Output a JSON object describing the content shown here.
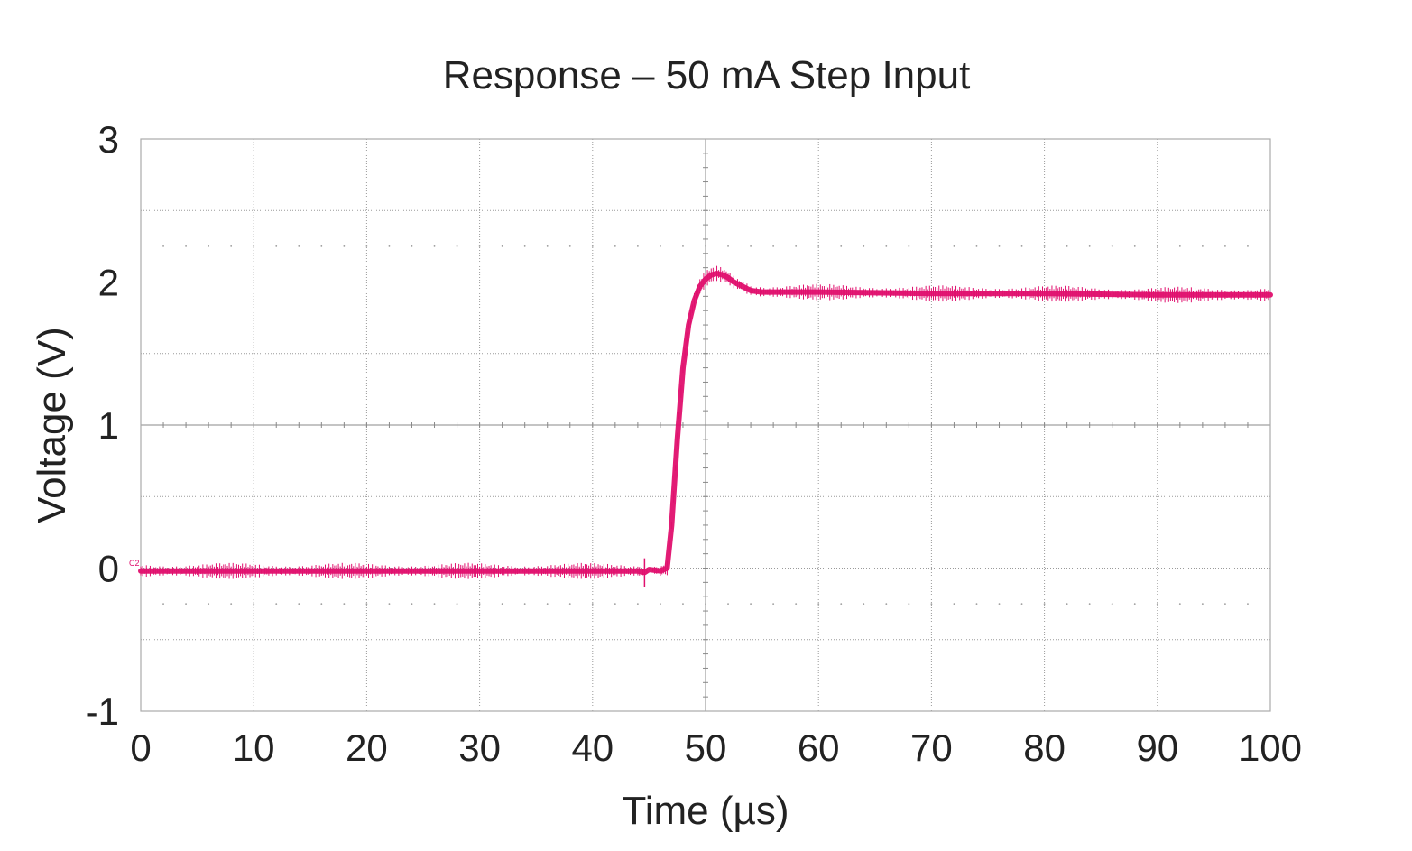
{
  "chart_data": {
    "type": "line",
    "title": "Response – 50 mA Step Input",
    "xlabel": "Time (µs)",
    "ylabel": "Voltage (V)",
    "xlim": [
      0,
      100
    ],
    "ylim": [
      -1,
      3
    ],
    "x_ticks": [
      "0",
      "10",
      "20",
      "30",
      "40",
      "50",
      "60",
      "70",
      "80",
      "90",
      "100"
    ],
    "y_ticks": [
      "3",
      "2",
      "1",
      "0",
      "-1"
    ],
    "channel_marker": "C2",
    "grid": true,
    "series": [
      {
        "color": "#e0106e",
        "x": [
          0,
          10,
          20,
          30,
          40,
          44,
          44.6,
          45,
          46,
          46.6,
          47,
          47.5,
          48,
          48.5,
          49,
          49.5,
          50,
          50.5,
          51,
          51.5,
          52,
          52.5,
          53,
          53.5,
          54,
          55,
          56,
          58,
          60,
          70,
          80,
          90,
          100
        ],
        "y": [
          -0.02,
          -0.02,
          -0.02,
          -0.02,
          -0.02,
          -0.02,
          -0.03,
          -0.01,
          -0.02,
          0.0,
          0.3,
          0.9,
          1.4,
          1.7,
          1.87,
          1.97,
          2.02,
          2.05,
          2.06,
          2.05,
          2.03,
          2.0,
          1.98,
          1.96,
          1.94,
          1.93,
          1.93,
          1.93,
          1.93,
          1.92,
          1.92,
          1.91,
          1.91
        ]
      }
    ]
  }
}
